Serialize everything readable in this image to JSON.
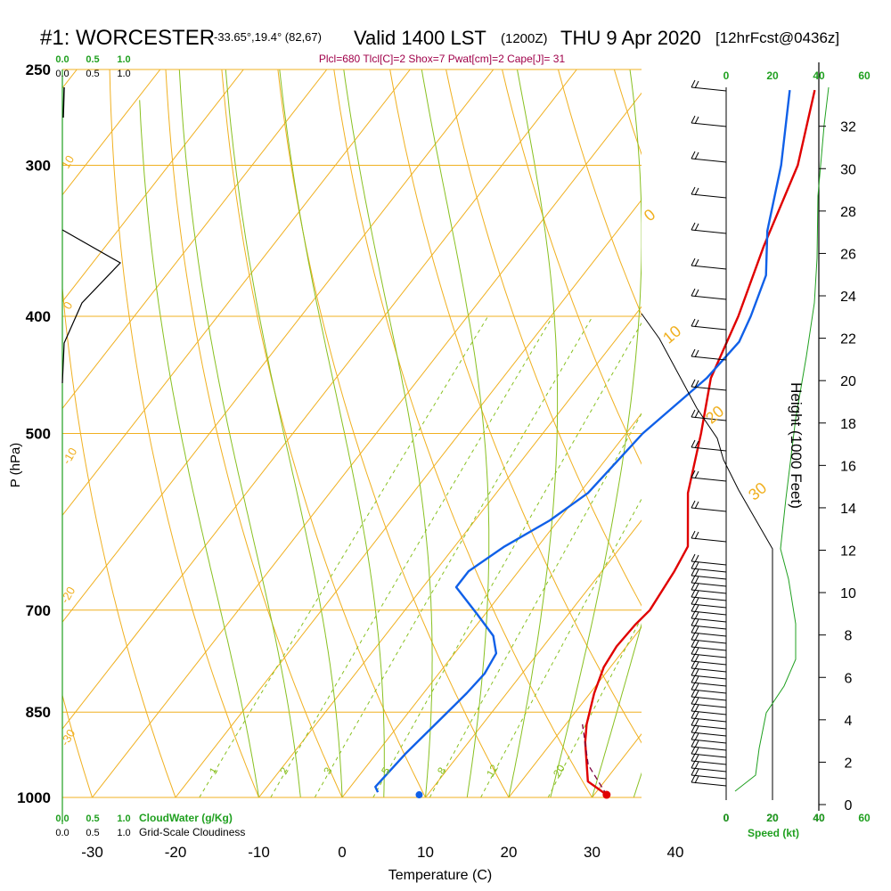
{
  "header": {
    "station": "#1: WORCESTER",
    "coords": "-33.65°,19.4° (82,67)",
    "valid": "Valid 1400 LST",
    "zulu": "(1200Z)",
    "date": "THU 9 Apr 2020",
    "forecast": "[12hrFcst@0436z]",
    "indices": "Plcl=680 Tlcl[C]=2 Shox=7 Pwat[cm]=2 Cape[J]= 31"
  },
  "colors": {
    "temperature": "#e00000",
    "dewpoint": "#1060e8",
    "isotherm": "#f0b020",
    "dry_adiabat": "#f0b020",
    "moist_adiabat": "#88c020",
    "mixing_ratio": "#88c020",
    "green_text": "#20a020",
    "indices_text": "#a0004a"
  },
  "chart_data": {
    "type": "skew-t",
    "xlabel": "Temperature (C)",
    "ylabel": "P (hPa)",
    "x_ticks": [
      "-30",
      "-20",
      "-10",
      "0",
      "10",
      "20",
      "30",
      "40"
    ],
    "p_ticks": [
      "250",
      "300",
      "400",
      "500",
      "700",
      "850",
      "1000"
    ],
    "xlim": [
      -33,
      36
    ],
    "plim": [
      1000,
      250
    ],
    "height_axis": {
      "label": "Height (1000 Feet)",
      "ticks": [
        "0",
        "2",
        "4",
        "6",
        "8",
        "10",
        "12",
        "14",
        "16",
        "18",
        "20",
        "22",
        "24",
        "26",
        "28",
        "30",
        "32"
      ]
    },
    "speed_axis": {
      "label": "Speed (kt)",
      "ticks_black": [
        "0",
        "20",
        "40"
      ],
      "ticks_green": [
        "0",
        "20",
        "40",
        "60"
      ]
    },
    "cloud_axis": {
      "cloudwater_label": "CloudWater (g/Kg)",
      "cloudiness_label": "Grid-Scale Cloudiness",
      "ticks": [
        "0.0",
        "0.5",
        "1.0"
      ]
    },
    "theta_labels": [
      "10",
      "0",
      "-10",
      "-20",
      "-30",
      "0",
      "10",
      "20",
      "30"
    ],
    "mixing_ratio_labels": [
      "1",
      "2",
      "3",
      "5",
      "8",
      "12",
      "20"
    ],
    "series": [
      {
        "name": "Temperature",
        "points": [
          [
            31.5,
            995
          ],
          [
            28,
            970
          ],
          [
            24,
            900
          ],
          [
            22.5,
            870
          ],
          [
            20.5,
            820
          ],
          [
            19.2,
            780
          ],
          [
            18.8,
            750
          ],
          [
            19,
            720
          ],
          [
            19.4,
            700
          ],
          [
            18.7,
            650
          ],
          [
            18,
            620
          ],
          [
            13,
            560
          ],
          [
            9,
            500
          ],
          [
            5,
            450
          ],
          [
            2.5,
            400
          ],
          [
            -1,
            350
          ],
          [
            -4.5,
            300
          ],
          [
            -9.5,
            260
          ]
        ]
      },
      {
        "name": "Dewpoint",
        "points": [
          [
            3.8,
            990
          ],
          [
            3,
            980
          ],
          [
            3.5,
            920
          ],
          [
            4.5,
            860
          ],
          [
            5.2,
            820
          ],
          [
            5.5,
            790
          ],
          [
            5,
            760
          ],
          [
            3,
            735
          ],
          [
            -1,
            705
          ],
          [
            -6,
            670
          ],
          [
            -6,
            650
          ],
          [
            -4,
            620
          ],
          [
            -1,
            590
          ],
          [
            1,
            560
          ],
          [
            2,
            500
          ],
          [
            4.5,
            450
          ],
          [
            5,
            420
          ],
          [
            4,
            400
          ],
          [
            2,
            370
          ],
          [
            -2,
            340
          ],
          [
            -6.5,
            300
          ],
          [
            -12.5,
            260
          ]
        ]
      },
      {
        "name": "Parcel",
        "points": [
          [
            31.5,
            995
          ],
          [
            26.5,
            940
          ],
          [
            23,
            885
          ],
          [
            22,
            870
          ]
        ]
      }
    ],
    "surface_temperature_marker": [
      31.5,
      995
    ],
    "surface_dewpoint_marker": [
      9,
      995
    ],
    "grid": true
  }
}
